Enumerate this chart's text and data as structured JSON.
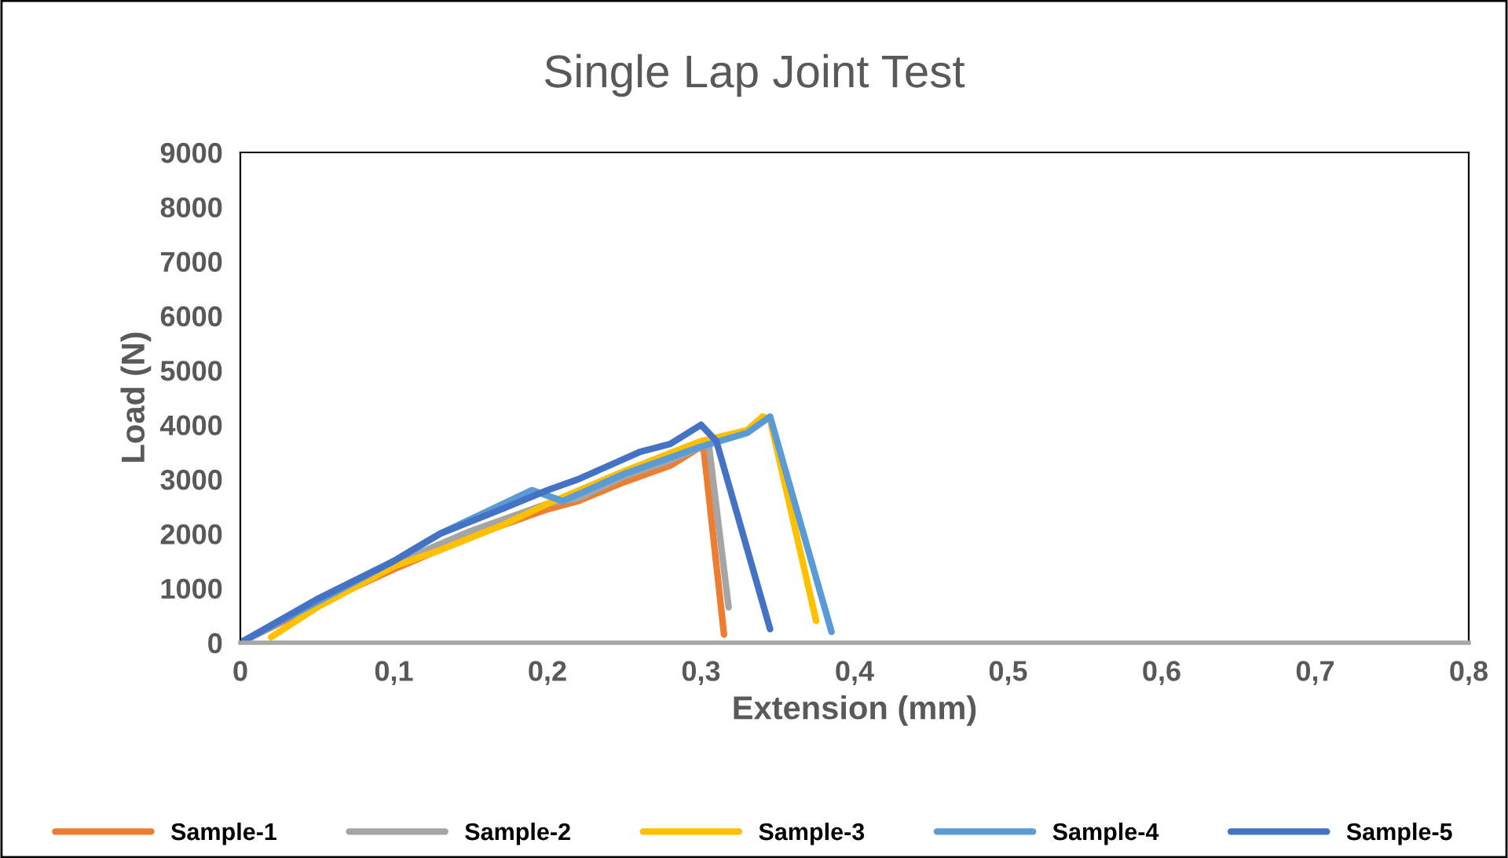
{
  "chart_data": {
    "type": "line",
    "title": "Single Lap Joint Test",
    "xlabel": "Extension (mm)",
    "ylabel": "Load (N)",
    "xlim": [
      0,
      0.8
    ],
    "ylim": [
      0,
      9000
    ],
    "xticks": [
      0,
      {
        "value": 0.1,
        "label": "0,1"
      },
      {
        "value": 0.2,
        "label": "0,2"
      },
      {
        "value": 0.3,
        "label": "0,3"
      },
      {
        "value": 0.4,
        "label": "0,4"
      },
      {
        "value": 0.5,
        "label": "0,5"
      },
      {
        "value": 0.6,
        "label": "0,6"
      },
      {
        "value": 0.7,
        "label": "0,7"
      },
      {
        "value": 0.8,
        "label": "0,8"
      }
    ],
    "yticks": [
      0,
      1000,
      2000,
      3000,
      4000,
      5000,
      6000,
      7000,
      8000,
      9000
    ],
    "grid": false,
    "legend": "bottom",
    "marker": "none",
    "line_style": "solid",
    "series": [
      {
        "name": "Sample-1",
        "color": "#ed7d31",
        "x": [
          0,
          0.05,
          0.1,
          0.15,
          0.2,
          0.22,
          0.25,
          0.28,
          0.3,
          0.302,
          0.315
        ],
        "values": [
          0,
          700,
          1350,
          1950,
          2450,
          2600,
          2950,
          3250,
          3600,
          3500,
          150
        ]
      },
      {
        "name": "Sample-2",
        "color": "#a5a5a5",
        "x": [
          0,
          0.05,
          0.1,
          0.15,
          0.2,
          0.22,
          0.25,
          0.28,
          0.305,
          0.318
        ],
        "values": [
          0,
          750,
          1450,
          2050,
          2550,
          2650,
          3050,
          3350,
          3650,
          650
        ]
      },
      {
        "name": "Sample-3",
        "color": "#ffc000",
        "x": [
          0.02,
          0.05,
          0.1,
          0.13,
          0.17,
          0.2,
          0.25,
          0.3,
          0.33,
          0.34,
          0.345,
          0.375
        ],
        "values": [
          100,
          650,
          1400,
          1700,
          2150,
          2550,
          3150,
          3700,
          3900,
          4150,
          4100,
          400
        ]
      },
      {
        "name": "Sample-4",
        "color": "#5b9bd5",
        "x": [
          0,
          0.05,
          0.1,
          0.13,
          0.16,
          0.19,
          0.21,
          0.25,
          0.3,
          0.33,
          0.345,
          0.385
        ],
        "values": [
          0,
          750,
          1500,
          2000,
          2400,
          2800,
          2600,
          3100,
          3600,
          3850,
          4150,
          200
        ]
      },
      {
        "name": "Sample-5",
        "color": "#4472c4",
        "x": [
          0,
          0.05,
          0.1,
          0.13,
          0.17,
          0.2,
          0.22,
          0.26,
          0.28,
          0.3,
          0.31,
          0.345
        ],
        "values": [
          0,
          800,
          1500,
          2000,
          2450,
          2800,
          3000,
          3500,
          3650,
          4000,
          3700,
          250
        ]
      }
    ]
  }
}
